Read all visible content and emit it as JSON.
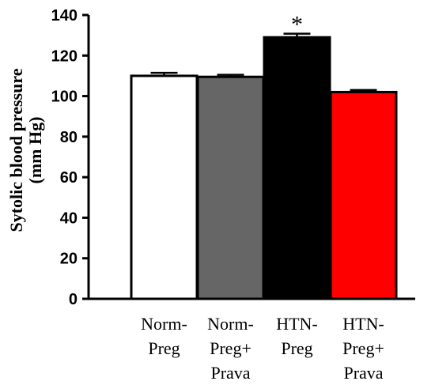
{
  "chart_data": {
    "type": "bar",
    "title": "",
    "ylabel": [
      "Sytolic blood pressure",
      "(mm Hg)"
    ],
    "xlabel": "",
    "ylim": [
      0,
      140
    ],
    "yticks": [
      0,
      20,
      40,
      60,
      80,
      100,
      120,
      140
    ],
    "categories": [
      [
        "Norm-",
        "Preg"
      ],
      [
        "Norm-",
        "Preg+",
        "Prava"
      ],
      [
        "HTN-",
        "Preg"
      ],
      [
        "HTN-",
        "Preg+",
        "Prava"
      ]
    ],
    "values": [
      110,
      109.5,
      129,
      102
    ],
    "errors": [
      1.5,
      1.0,
      1.8,
      1.0
    ],
    "colors": [
      "#ffffff",
      "#666666",
      "#000000",
      "#ff0000"
    ],
    "annotations": [
      "",
      "",
      "*",
      ""
    ],
    "grid": false,
    "legend": "none"
  }
}
